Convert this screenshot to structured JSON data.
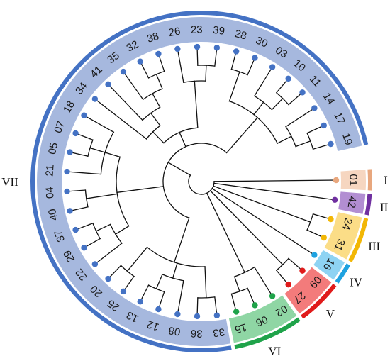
{
  "diagram": {
    "type": "circular-dendrogram",
    "groups": [
      {
        "id": "I",
        "label": "I",
        "color": "#E8A77E",
        "band": "#F6D6C0",
        "leaves": [
          "01"
        ]
      },
      {
        "id": "II",
        "label": "II",
        "color": "#7030A0",
        "band": "#B28ED2",
        "leaves": [
          "42"
        ]
      },
      {
        "id": "III",
        "label": "III",
        "color": "#F2B705",
        "band": "#FBDD87",
        "leaves": [
          "24",
          "31"
        ]
      },
      {
        "id": "IV",
        "label": "IV",
        "color": "#1FA2E0",
        "band": "#8ED3F3",
        "leaves": [
          "16"
        ]
      },
      {
        "id": "V",
        "label": "V",
        "color": "#E01B1B",
        "band": "#F37B7B",
        "leaves": [
          "09",
          "27"
        ]
      },
      {
        "id": "VI",
        "label": "VI",
        "color": "#1FA34A",
        "band": "#8FD6A4",
        "leaves": [
          "02",
          "06",
          "15"
        ]
      },
      {
        "id": "VII",
        "label": "VII",
        "color": "#4472C4",
        "band": "#A6B8DE",
        "leaves": [
          "33",
          "36",
          "08",
          "12",
          "13",
          "25",
          "20",
          "22",
          "29",
          "37",
          "40",
          "04",
          "21",
          "05",
          "07",
          "18",
          "34",
          "41",
          "35",
          "32",
          "38",
          "26",
          "23",
          "39",
          "28",
          "30",
          "03",
          "10",
          "11",
          "14",
          "17",
          "19"
        ]
      }
    ],
    "tree": {
      "c": [
        {
          "leaf": "01"
        },
        {
          "leaf": "42"
        },
        {
          "c": [
            {
              "leaf": "24"
            },
            {
              "leaf": "31"
            }
          ]
        },
        {
          "leaf": "16"
        },
        {
          "c": [
            {
              "leaf": "09"
            },
            {
              "leaf": "27"
            }
          ]
        },
        {
          "c": [
            {
              "leaf": "02"
            },
            {
              "c": [
                {
                  "leaf": "06"
                },
                {
                  "leaf": "15"
                }
              ]
            }
          ]
        },
        {
          "c": [
            {
              "c": [
                {
                  "c": [
                    {
                      "leaf": "33"
                    },
                    {
                      "leaf": "36"
                    }
                  ]
                },
                {
                  "c": [
                    {
                      "leaf": "08"
                    },
                    {
                      "c": [
                        {
                          "leaf": "12"
                        },
                        {
                          "leaf": "13"
                        }
                      ]
                    }
                  ]
                },
                {
                  "c": [
                    {
                      "leaf": "25"
                    },
                    {
                      "leaf": "20"
                    }
                  ]
                }
              ]
            },
            {
              "c": [
                {
                  "c": [
                    {
                      "leaf": "22"
                    },
                    {
                      "c": [
                        {
                          "leaf": "29"
                        },
                        {
                          "leaf": "37"
                        }
                      ]
                    }
                  ]
                },
                {
                  "c": [
                    {
                      "leaf": "40"
                    },
                    {
                      "leaf": "04"
                    }
                  ]
                },
                {
                  "c": [
                    {
                      "leaf": "21"
                    },
                    {
                      "c": [
                        {
                          "leaf": "05"
                        },
                        {
                          "leaf": "07"
                        }
                      ]
                    },
                    {
                      "leaf": "18"
                    }
                  ]
                }
              ]
            },
            {
              "c": [
                {
                  "c": [
                    {
                      "leaf": "34"
                    },
                    {
                      "c": [
                        {
                          "leaf": "41"
                        },
                        {
                          "c": [
                            {
                              "leaf": "35"
                            },
                            {
                              "c": [
                                {
                                  "leaf": "32"
                                },
                                {
                                  "leaf": "38"
                                }
                              ]
                            }
                          ]
                        }
                      ]
                    }
                  ]
                },
                {
                  "c": [
                    {
                      "leaf": "26"
                    },
                    {
                      "c": [
                        {
                          "leaf": "23"
                        },
                        {
                          "leaf": "39"
                        }
                      ]
                    }
                  ]
                }
              ]
            },
            {
              "c": [
                {
                  "c": [
                    {
                      "leaf": "28"
                    },
                    {
                      "leaf": "30"
                    }
                  ]
                },
                {
                  "c": [
                    {
                      "leaf": "03"
                    },
                    {
                      "c": [
                        {
                          "leaf": "10"
                        },
                        {
                          "leaf": "11"
                        }
                      ]
                    }
                  ]
                },
                {
                  "c": [
                    {
                      "leaf": "14"
                    },
                    {
                      "c": [
                        {
                          "leaf": "17"
                        },
                        {
                          "leaf": "19"
                        }
                      ]
                    }
                  ]
                }
              ]
            }
          ]
        }
      ]
    }
  }
}
